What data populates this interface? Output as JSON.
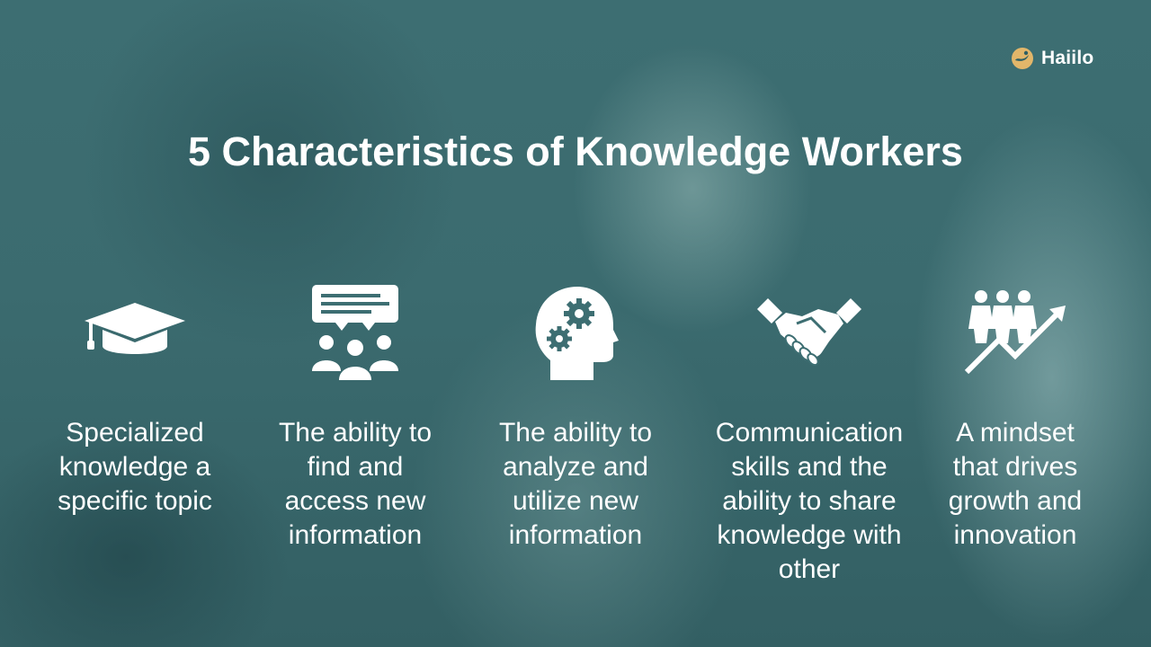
{
  "brand": {
    "name": "Haiilo"
  },
  "title": "5 Characteristics of Knowledge Workers",
  "items": [
    {
      "icon": "graduation-cap-icon",
      "lines": [
        "Specialized",
        "knowledge a",
        "specific topic"
      ]
    },
    {
      "icon": "group-discussion-icon",
      "lines": [
        "The ability to",
        "find and",
        "access new",
        "information"
      ]
    },
    {
      "icon": "head-gears-icon",
      "lines": [
        "The ability to",
        "analyze and",
        "utilize new",
        "information"
      ]
    },
    {
      "icon": "handshake-icon",
      "lines": [
        "Communication",
        "skills and the",
        "ability to share",
        "knowledge with",
        "other"
      ]
    },
    {
      "icon": "people-growth-icon",
      "lines": [
        "A mindset",
        "that drives",
        "growth and",
        "innovation"
      ]
    }
  ],
  "colors": {
    "logo_accent": "#e2b66a",
    "text": "#ffffff"
  }
}
